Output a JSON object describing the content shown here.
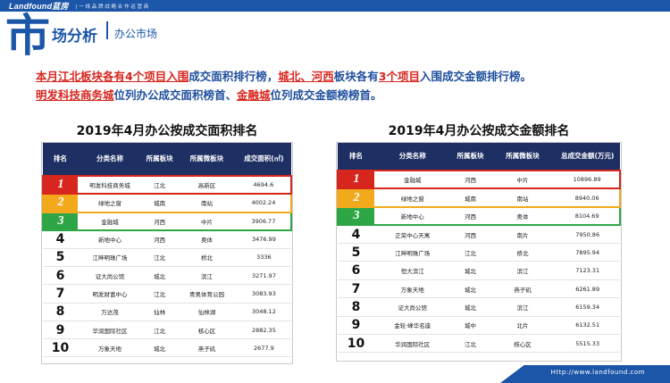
{
  "header": {
    "logo": "Landfound蓝房",
    "slogan": "| 一 线 品 牌 战 略 合 作 运 营 商"
  },
  "section": {
    "big_char": "市",
    "title": "场分析",
    "subtitle": "办公市场"
  },
  "headline": {
    "p1": "本月江北板块各有",
    "p2": "4个项目入围",
    "p3": "成交面积排行榜，",
    "p4": "城北、河西",
    "p5": "板块各有",
    "p6": "3个项目",
    "p7": "入围成交金额排行榜。",
    "p8": "明发科技商务城",
    "p9": "位列办公成交面积榜首、",
    "p10": "金融城",
    "p11": "位列成交金额榜榜首。"
  },
  "left_table": {
    "title": "2019年4月办公按成交面积排名",
    "headers": [
      "排名",
      "分类名称",
      "所属板块",
      "所属微板块",
      "成交面积(㎡)"
    ],
    "rows": [
      [
        "1",
        "明发科技商务城",
        "江北",
        "高新区",
        "4694.6"
      ],
      [
        "2",
        "绿地之窗",
        "城南",
        "南站",
        "4002.24"
      ],
      [
        "3",
        "金融城",
        "河西",
        "中片",
        "3906.77"
      ],
      [
        "4",
        "新地中心",
        "河西",
        "奥体",
        "3476.99"
      ],
      [
        "5",
        "江畔明珠广场",
        "江北",
        "桥北",
        "3336"
      ],
      [
        "6",
        "证大尚公馆",
        "城北",
        "滨江",
        "3271.97"
      ],
      [
        "7",
        "明发财富中心",
        "江北",
        "青奥体育公园",
        "3083.93"
      ],
      [
        "8",
        "万达茂",
        "仙林",
        "仙林湖",
        "3048.12"
      ],
      [
        "9",
        "华润国际社区",
        "江北",
        "核心区",
        "2882.35"
      ],
      [
        "10",
        "万象天地",
        "城北",
        "燕子矶",
        "2677.9"
      ]
    ]
  },
  "right_table": {
    "title": "2019年4月办公按成交金额排名",
    "headers": [
      "排名",
      "分类名称",
      "所属板块",
      "所属微板块",
      "总成交金额(万元)"
    ],
    "rows": [
      [
        "1",
        "金融城",
        "河西",
        "中片",
        "10896.89"
      ],
      [
        "2",
        "绿地之窗",
        "城南",
        "南站",
        "8940.06"
      ],
      [
        "3",
        "新地中心",
        "河西",
        "奥体",
        "8104.69"
      ],
      [
        "4",
        "正荣中心天寓",
        "河西",
        "南片",
        "7950.86"
      ],
      [
        "5",
        "江畔明珠广场",
        "江北",
        "桥北",
        "7895.94"
      ],
      [
        "6",
        "恒大滨江",
        "城北",
        "滨江",
        "7123.31"
      ],
      [
        "7",
        "万象天地",
        "城北",
        "燕子矶",
        "6261.89"
      ],
      [
        "8",
        "证大尚公馆",
        "城北",
        "滨江",
        "6159.34"
      ],
      [
        "9",
        "金轮·峰华名座",
        "城中",
        "北片",
        "6132.51"
      ],
      [
        "10",
        "华润国际社区",
        "江北",
        "核心区",
        "5515.33"
      ]
    ]
  },
  "footer": {
    "url": "Http://www.landfound.com"
  },
  "colors": {
    "brand_blue": "#1c56a8",
    "header_navy": "#1e2f63",
    "rank1_red": "#d7261e",
    "rank2_orange": "#f3a91c",
    "rank3_green": "#2fa646"
  }
}
